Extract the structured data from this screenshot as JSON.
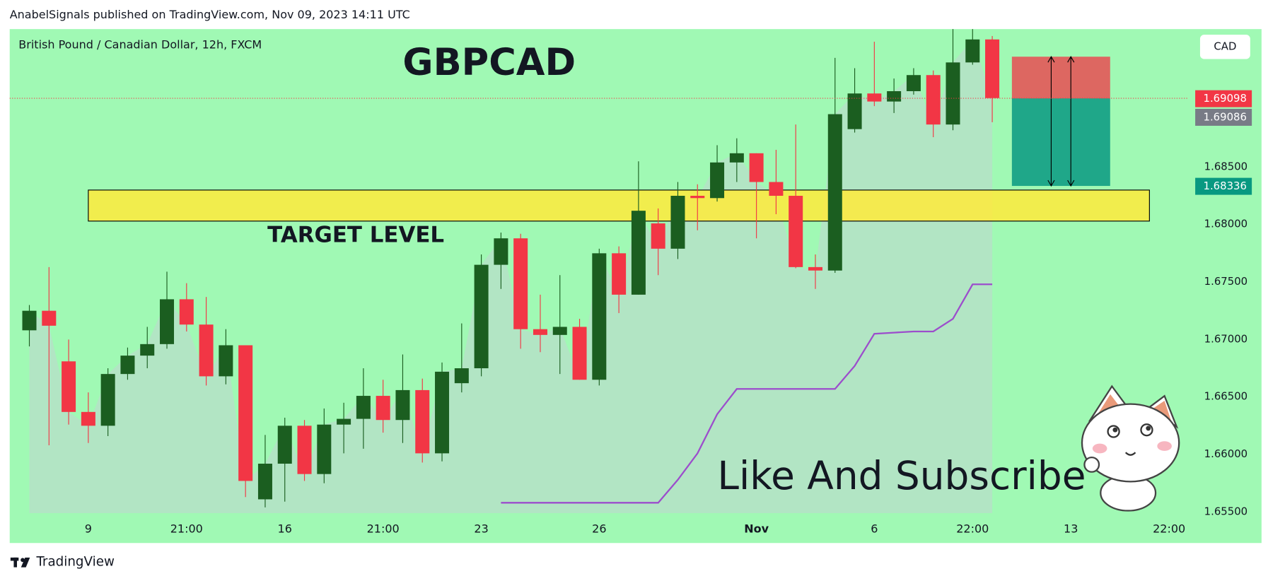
{
  "header": "AnabelSignals published on TradingView.com, Nov 09, 2023 14:11 UTC",
  "footer": "TradingView",
  "chart_data": {
    "type": "candlestick",
    "title": "GBPCAD",
    "subtitle": "British Pound / Canadian Dollar, 12h, FXCM",
    "currency": "CAD",
    "x": [
      0,
      1,
      2,
      3,
      4,
      5,
      6,
      7,
      8,
      9,
      10,
      11,
      12,
      13,
      14,
      15,
      16,
      17,
      18,
      19,
      20,
      21,
      22,
      23,
      24,
      25,
      26,
      27,
      28,
      29,
      30,
      31,
      32,
      33,
      34,
      35,
      36,
      37,
      38,
      39,
      40,
      41,
      42,
      43,
      44,
      45,
      46,
      47,
      48,
      49
    ],
    "open": [
      1.6708,
      1.6725,
      1.6681,
      1.6637,
      1.6625,
      1.667,
      1.6686,
      1.6696,
      1.6735,
      1.6713,
      1.6668,
      1.6695,
      1.6561,
      1.6592,
      1.6625,
      1.6583,
      1.6626,
      1.6631,
      1.6651,
      1.663,
      1.6656,
      1.6601,
      1.6662,
      1.6675,
      1.6765,
      1.6788,
      1.6709,
      1.6704,
      1.6711,
      1.6665,
      1.6775,
      1.6739,
      1.6801,
      1.6779,
      1.6825,
      1.6823,
      1.6854,
      1.6862,
      1.6837,
      1.6825,
      1.6763,
      1.676,
      1.6883,
      1.6914,
      1.6907,
      1.6916,
      1.693,
      1.6887,
      1.6941,
      1.6961
    ],
    "high": [
      1.673,
      1.6763,
      1.67,
      1.6654,
      1.6675,
      1.6693,
      1.6711,
      1.6759,
      1.6749,
      1.6737,
      1.6709,
      1.6695,
      1.6617,
      1.6632,
      1.663,
      1.664,
      1.6645,
      1.6675,
      1.6665,
      1.6687,
      1.6666,
      1.668,
      1.6714,
      1.6774,
      1.6793,
      1.6792,
      1.6739,
      1.6756,
      1.6718,
      1.6779,
      1.6781,
      1.6855,
      1.6814,
      1.6837,
      1.6835,
      1.6869,
      1.6875,
      1.6862,
      1.6865,
      1.6887,
      1.6774,
      1.6945,
      1.6936,
      1.6959,
      1.6927,
      1.6936,
      1.6934,
      1.697,
      1.697,
      1.6964
    ],
    "low": [
      1.6694,
      1.6608,
      1.6626,
      1.661,
      1.6616,
      1.6665,
      1.6675,
      1.6692,
      1.6707,
      1.666,
      1.6661,
      1.6563,
      1.6554,
      1.6559,
      1.6577,
      1.6575,
      1.6601,
      1.6605,
      1.6619,
      1.661,
      1.6593,
      1.6594,
      1.6654,
      1.6668,
      1.6744,
      1.6692,
      1.6689,
      1.667,
      1.6665,
      1.666,
      1.6723,
      1.6739,
      1.6756,
      1.677,
      1.6795,
      1.682,
      1.6837,
      1.6788,
      1.6809,
      1.6762,
      1.6744,
      1.6758,
      1.688,
      1.6903,
      1.6897,
      1.6913,
      1.6876,
      1.6882,
      1.6939,
      1.6889
    ],
    "close": [
      1.6725,
      1.6712,
      1.6637,
      1.6625,
      1.667,
      1.6686,
      1.6696,
      1.6735,
      1.6713,
      1.6668,
      1.6695,
      1.6577,
      1.6592,
      1.6625,
      1.6583,
      1.6626,
      1.6631,
      1.6651,
      1.663,
      1.6656,
      1.6601,
      1.6672,
      1.6675,
      1.6765,
      1.6788,
      1.6709,
      1.6704,
      1.6711,
      1.6665,
      1.6775,
      1.6739,
      1.6812,
      1.6779,
      1.6825,
      1.6823,
      1.6854,
      1.6862,
      1.6837,
      1.6825,
      1.6763,
      1.676,
      1.6896,
      1.6914,
      1.6907,
      1.6916,
      1.693,
      1.6887,
      1.6941,
      1.6961,
      1.691
    ],
    "up_color": "#1b5e20",
    "down_color": "#f23645",
    "line": {
      "color": "#9c4dcc",
      "values": [
        null,
        null,
        null,
        null,
        null,
        null,
        null,
        null,
        null,
        null,
        null,
        null,
        null,
        null,
        null,
        null,
        null,
        null,
        null,
        null,
        null,
        null,
        null,
        null,
        1.6558,
        1.6558,
        1.6558,
        1.6558,
        1.6558,
        1.6558,
        1.6558,
        1.6558,
        1.6558,
        1.6578,
        1.6601,
        1.6635,
        1.6657,
        1.6657,
        1.6657,
        1.6657,
        1.6657,
        1.6657,
        1.6677,
        1.6705,
        1.6706,
        1.6707,
        1.6707,
        1.6718,
        1.6748,
        1.6748
      ]
    },
    "xlim": [
      -1,
      59
    ],
    "xticks": [
      {
        "value": 3,
        "label": "9"
      },
      {
        "value": 8,
        "label": "21:00"
      },
      {
        "value": 13,
        "label": "16"
      },
      {
        "value": 18,
        "label": "21:00"
      },
      {
        "value": 23,
        "label": "23"
      },
      {
        "value": 29,
        "label": "26"
      },
      {
        "value": 37,
        "label": "Nov"
      },
      {
        "value": 43,
        "label": "6"
      },
      {
        "value": 48,
        "label": "22:00"
      },
      {
        "value": 53,
        "label": "13"
      },
      {
        "value": 58,
        "label": "22:00"
      }
    ],
    "ylim": [
      1.6549,
      1.697
    ],
    "yticks": [
      {
        "value": 1.655,
        "label": "1.65500"
      },
      {
        "value": 1.66,
        "label": "1.66000"
      },
      {
        "value": 1.665,
        "label": "1.66500"
      },
      {
        "value": 1.67,
        "label": "1.67000"
      },
      {
        "value": 1.675,
        "label": "1.67500"
      },
      {
        "value": 1.68,
        "label": "1.68000"
      },
      {
        "value": 1.685,
        "label": "1.68500"
      }
    ],
    "price_labels": [
      {
        "value": 1.69098,
        "color": "#f23645"
      },
      {
        "value": 1.69086,
        "color": "#787b86"
      },
      {
        "value": 1.68336,
        "color": "#089981"
      }
    ],
    "target_zone": {
      "label": "TARGET LEVEL",
      "y": [
        1.6803,
        1.683
      ],
      "x": [
        3,
        57
      ],
      "color": "#ffeb3b"
    },
    "position": {
      "stop": 1.6946,
      "entry": 1.69098,
      "target": 1.68336,
      "x": [
        50,
        55
      ]
    },
    "annotation": "Like And Subscribe"
  }
}
